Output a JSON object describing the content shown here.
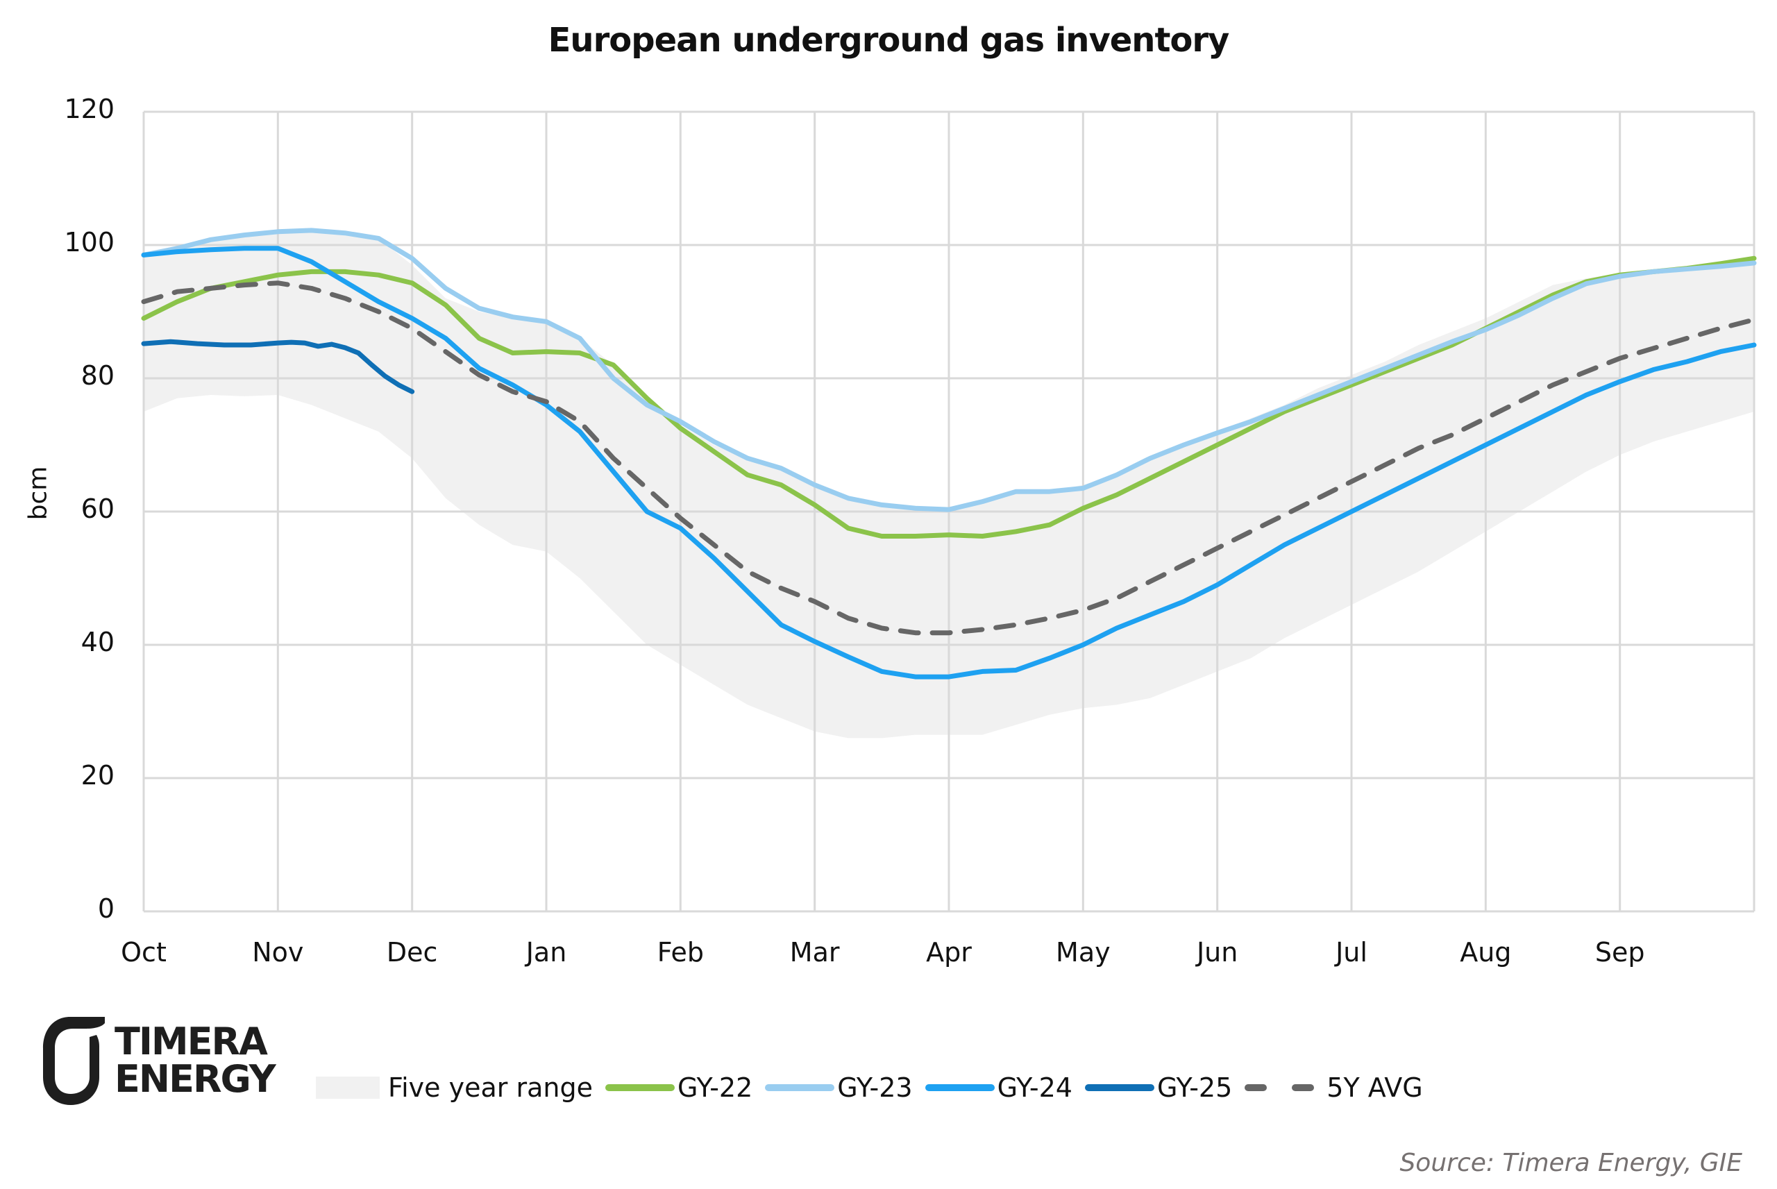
{
  "chart_data": {
    "type": "line",
    "title": "European underground gas inventory",
    "xlabel": "",
    "ylabel": "bcm",
    "ylim": [
      0,
      120
    ],
    "yticks": [
      0,
      20,
      40,
      60,
      80,
      100,
      120
    ],
    "xlim_months": [
      0,
      12
    ],
    "categories": [
      "Oct",
      "Nov",
      "Dec",
      "Jan",
      "Feb",
      "Mar",
      "Apr",
      "May",
      "Jun",
      "Jul",
      "Aug",
      "Sep"
    ],
    "grid": true,
    "legend_position": "bottom",
    "x_unit": "months since 1 Oct (0=Oct 1, 12=end of Sep)",
    "range_band": {
      "name": "Five year range",
      "color": "#f1f1f1",
      "x": [
        0,
        0.25,
        0.5,
        0.75,
        1.0,
        1.25,
        1.5,
        1.75,
        2.0,
        2.25,
        2.5,
        2.75,
        3.0,
        3.25,
        3.5,
        3.75,
        4.0,
        4.25,
        4.5,
        4.75,
        5.0,
        5.25,
        5.5,
        5.75,
        6.0,
        6.25,
        6.5,
        6.75,
        7.0,
        7.25,
        7.5,
        7.75,
        8.0,
        8.25,
        8.5,
        8.75,
        9.0,
        9.25,
        9.5,
        9.75,
        10.0,
        10.25,
        10.5,
        10.75,
        11.0,
        11.25,
        11.5,
        11.75,
        12.0
      ],
      "low": [
        75,
        77,
        77.5,
        77.3,
        77.5,
        76,
        74,
        72,
        68,
        62,
        58,
        55,
        54,
        50,
        45,
        40,
        37,
        34,
        31,
        29,
        27,
        26,
        26,
        26.5,
        26.5,
        26.5,
        28,
        29.5,
        30.5,
        31,
        32,
        34,
        36,
        38,
        41,
        43.5,
        46,
        48.5,
        51,
        54,
        57,
        60,
        63,
        66,
        68.5,
        70.5,
        72,
        73.5,
        75
      ],
      "high": [
        98.5,
        99.5,
        101,
        101.5,
        102,
        102.2,
        102,
        101,
        97,
        92,
        90,
        89,
        88.5,
        86,
        82,
        77,
        73,
        70,
        68,
        66.5,
        64,
        62,
        61,
        60.5,
        60,
        61.5,
        63,
        63,
        64,
        65.5,
        68,
        70,
        72,
        74,
        76,
        78.5,
        80.5,
        82.5,
        85,
        87,
        89,
        91.5,
        94,
        95,
        95.8,
        96,
        96.5,
        97.2,
        98
      ]
    },
    "series": [
      {
        "name": "GY-22",
        "color": "#8bc34a",
        "dashed": false,
        "x": [
          0,
          0.25,
          0.5,
          0.75,
          1.0,
          1.25,
          1.5,
          1.75,
          2.0,
          2.25,
          2.5,
          2.75,
          3.0,
          3.25,
          3.5,
          3.75,
          4.0,
          4.25,
          4.5,
          4.75,
          5.0,
          5.25,
          5.5,
          5.75,
          6.0,
          6.25,
          6.5,
          6.75,
          7.0,
          7.25,
          7.5,
          7.75,
          8.0,
          8.25,
          8.5,
          8.75,
          9.0,
          9.25,
          9.5,
          9.75,
          10.0,
          10.25,
          10.5,
          10.75,
          11.0,
          11.25,
          11.5,
          11.75,
          12.0
        ],
        "values": [
          89,
          91.5,
          93.5,
          94.5,
          95.5,
          96,
          96,
          95.5,
          94.3,
          91,
          86,
          83.8,
          84,
          83.8,
          82,
          77,
          72.5,
          69,
          65.5,
          64,
          61,
          57.5,
          56.3,
          56.3,
          56.5,
          56.3,
          57,
          58,
          60.5,
          62.5,
          65,
          67.5,
          70,
          72.5,
          75,
          77,
          79,
          81,
          83,
          85,
          87.5,
          90,
          92.5,
          94.5,
          95.5,
          96,
          96.5,
          97.2,
          98
        ]
      },
      {
        "name": "GY-23",
        "color": "#99cdf0",
        "dashed": false,
        "x": [
          0,
          0.25,
          0.5,
          0.75,
          1.0,
          1.25,
          1.5,
          1.75,
          2.0,
          2.25,
          2.5,
          2.75,
          3.0,
          3.25,
          3.5,
          3.75,
          4.0,
          4.25,
          4.5,
          4.75,
          5.0,
          5.25,
          5.5,
          5.75,
          6.0,
          6.25,
          6.5,
          6.75,
          7.0,
          7.25,
          7.5,
          7.75,
          8.0,
          8.25,
          8.5,
          8.75,
          9.0,
          9.25,
          9.5,
          9.75,
          10.0,
          10.25,
          10.5,
          10.75,
          11.0,
          11.25,
          11.5,
          11.75,
          12.0
        ],
        "values": [
          98.5,
          99.5,
          100.8,
          101.5,
          102,
          102.2,
          101.8,
          101,
          98,
          93.5,
          90.5,
          89.2,
          88.5,
          86,
          80,
          76,
          73.5,
          70.5,
          68,
          66.5,
          64,
          62,
          61,
          60.5,
          60.3,
          61.5,
          63,
          63,
          63.5,
          65.5,
          68,
          70,
          71.8,
          73.5,
          75.5,
          77.5,
          79.5,
          81.5,
          83.5,
          85.5,
          87.3,
          89.5,
          92,
          94.2,
          95.3,
          96,
          96.4,
          96.8,
          97.3
        ]
      },
      {
        "name": "GY-24",
        "color": "#1ea1f1",
        "dashed": false,
        "x": [
          0,
          0.25,
          0.5,
          0.75,
          1.0,
          1.25,
          1.5,
          1.75,
          2.0,
          2.25,
          2.5,
          2.75,
          3.0,
          3.25,
          3.5,
          3.75,
          4.0,
          4.25,
          4.5,
          4.75,
          5.0,
          5.25,
          5.5,
          5.75,
          6.0,
          6.25,
          6.5,
          6.75,
          7.0,
          7.25,
          7.5,
          7.75,
          8.0,
          8.25,
          8.5,
          8.75,
          9.0,
          9.25,
          9.5,
          9.75,
          10.0,
          10.25,
          10.5,
          10.75,
          11.0,
          11.25,
          11.5,
          11.75,
          12.0
        ],
        "values": [
          98.5,
          99,
          99.3,
          99.5,
          99.5,
          97.5,
          94.5,
          91.5,
          89,
          86,
          81.5,
          79,
          76,
          72,
          66,
          60,
          57.5,
          53,
          48,
          43,
          40.5,
          38.2,
          36,
          35.2,
          35.2,
          36,
          36.2,
          38,
          40,
          42.5,
          44.5,
          46.5,
          49,
          52,
          55,
          57.5,
          60,
          62.5,
          65,
          67.5,
          70,
          72.5,
          75,
          77.5,
          79.5,
          81.3,
          82.5,
          84,
          85
        ]
      },
      {
        "name": "GY-25",
        "color": "#0f6fb5",
        "dashed": false,
        "x": [
          0,
          0.2,
          0.4,
          0.6,
          0.8,
          1.0,
          1.1,
          1.2,
          1.3,
          1.4,
          1.5,
          1.6,
          1.7,
          1.8,
          1.9,
          2.0
        ],
        "values": [
          85.2,
          85.5,
          85.2,
          85,
          85,
          85.3,
          85.4,
          85.3,
          84.8,
          85.1,
          84.6,
          83.8,
          82,
          80.3,
          79,
          78
        ]
      },
      {
        "name": "5Y AVG",
        "color": "#666666",
        "dashed": true,
        "x": [
          0,
          0.25,
          0.5,
          0.75,
          1.0,
          1.25,
          1.5,
          1.75,
          2.0,
          2.25,
          2.5,
          2.75,
          3.0,
          3.25,
          3.5,
          3.75,
          4.0,
          4.25,
          4.5,
          4.75,
          5.0,
          5.25,
          5.5,
          5.75,
          6.0,
          6.25,
          6.5,
          6.75,
          7.0,
          7.25,
          7.5,
          7.75,
          8.0,
          8.25,
          8.5,
          8.75,
          9.0,
          9.25,
          9.5,
          9.75,
          10.0,
          10.25,
          10.5,
          10.75,
          11.0,
          11.25,
          11.5,
          11.75,
          12.0
        ],
        "values": [
          91.5,
          93,
          93.5,
          94,
          94.3,
          93.5,
          92,
          90,
          87.5,
          84,
          80.5,
          78,
          76.5,
          73.5,
          68,
          63.5,
          59,
          55,
          51,
          48.5,
          46.5,
          44,
          42.5,
          41.8,
          41.8,
          42.3,
          43,
          44,
          45.2,
          47,
          49.5,
          52,
          54.5,
          57,
          59.5,
          62,
          64.5,
          67,
          69.5,
          71.5,
          74,
          76.5,
          79,
          81,
          83,
          84.5,
          86,
          87.5,
          88.8
        ]
      }
    ]
  },
  "legend": {
    "items": [
      {
        "label": "Five year range",
        "kind": "area",
        "color": "#f1f1f1"
      },
      {
        "label": "GY-22",
        "kind": "line",
        "color": "#8bc34a"
      },
      {
        "label": "GY-23",
        "kind": "line",
        "color": "#99cdf0"
      },
      {
        "label": "GY-24",
        "kind": "line",
        "color": "#1ea1f1"
      },
      {
        "label": "GY-25",
        "kind": "line",
        "color": "#0f6fb5"
      },
      {
        "label": "5Y AVG",
        "kind": "dash",
        "color": "#666666"
      }
    ]
  },
  "branding": {
    "logo_icon": "timera-logo-mark-icon",
    "logo_line1": "TIMERA",
    "logo_line2": "ENERGY"
  },
  "source": "Source: Timera Energy, GIE"
}
